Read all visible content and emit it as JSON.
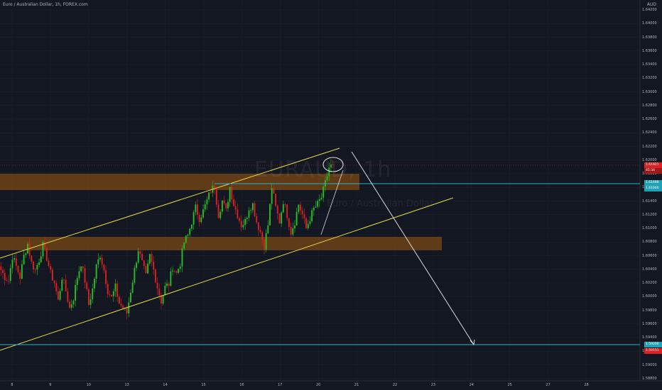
{
  "header": {
    "symbol_title": "Euro / Australian Dollar, 1h, FOREX.com",
    "currency": "AUD"
  },
  "watermark": {
    "symbol": "EURAUD, 1h",
    "description": "Euro / Australian Dollar"
  },
  "colors": {
    "background": "#131722",
    "bull": "#26c026",
    "bear": "#e02020",
    "channel_line": "#e8d84a",
    "zone_fill": "#7a4a14",
    "horizontal_line": "#22b5c8",
    "projection_arrow": "#d8d8d8",
    "current_price_tag": "#e02020",
    "level_tag": "#1fa2b5"
  },
  "price_axis": {
    "labels": [
      "1.64200",
      "1.64000",
      "1.63800",
      "1.63600",
      "1.63400",
      "1.63200",
      "1.63000",
      "1.62800",
      "1.62600",
      "1.62400",
      "1.62200",
      "1.62000",
      "1.61800",
      "1.61600",
      "1.61400",
      "1.61200",
      "1.61000",
      "1.60800",
      "1.60600",
      "1.60400",
      "1.60200",
      "1.60000",
      "1.59800",
      "1.59600",
      "1.59400",
      "1.59200",
      "1.59000",
      "1.58800"
    ]
  },
  "time_axis": {
    "labels": [
      "8",
      "9",
      "10",
      "13",
      "14",
      "15",
      "16",
      "17",
      "20",
      "21",
      "22",
      "23",
      "24",
      "25",
      "27",
      "28"
    ]
  },
  "price_tags": [
    {
      "name": "current-price-tag",
      "text": "1.61921",
      "color": "#e02020"
    },
    {
      "name": "countdown-tag",
      "text": "45:34",
      "color": "#e02020"
    },
    {
      "name": "resistance-level-tag-top",
      "text": "1.61688",
      "color": "#1fa2b5"
    },
    {
      "name": "resistance-level-tag-bottom",
      "text": "1.61660",
      "color": "#1fa2b5"
    },
    {
      "name": "target-level-tag",
      "text": "1.59200",
      "color": "#1fa2b5"
    },
    {
      "name": "target-level-tag-lower",
      "text": "1.59151",
      "color": "#e02020"
    }
  ],
  "chart_data": {
    "type": "candlestick",
    "instrument": "EURAUD",
    "interval": "1h",
    "ylim": [
      1.588,
      1.643
    ],
    "x_ticks": [
      "8",
      "9",
      "10",
      "13",
      "14",
      "15",
      "16",
      "17",
      "20",
      "21",
      "22",
      "23",
      "24",
      "25",
      "27",
      "28"
    ],
    "overlays": {
      "channel_upper": [
        [
          0,
          1.6065
        ],
        [
          478,
          1.6225
        ]
      ],
      "channel_lower": [
        [
          0,
          1.591
        ],
        [
          638,
          1.6145
        ]
      ],
      "supply_zone": {
        "from": 1.617,
        "to": 1.6146
      },
      "demand_zone": {
        "from": 1.6083,
        "to": 1.6066
      },
      "resistance_line": 1.6168,
      "target_line": 1.592,
      "current_price": 1.61921
    },
    "ohlc_path": [
      1.604,
      1.603,
      1.6025,
      1.606,
      1.6045,
      1.603,
      1.606,
      1.6078,
      1.605,
      1.604,
      1.6055,
      1.6075,
      1.6058,
      1.6035,
      1.6022,
      1.5995,
      1.603,
      1.601,
      1.5985,
      1.6,
      1.603,
      1.605,
      1.6025,
      1.599,
      1.6012,
      1.6045,
      1.6062,
      1.604,
      1.601,
      1.6,
      1.6015,
      1.5992,
      1.5985,
      1.5978,
      1.601,
      1.604,
      1.607,
      1.605,
      1.603,
      1.606,
      1.604,
      1.6015,
      1.5995,
      1.6015,
      1.602,
      1.6045,
      1.6035,
      1.605,
      1.608,
      1.609,
      1.611,
      1.613,
      1.6115,
      1.6125,
      1.614,
      1.6155,
      1.616,
      1.612,
      1.614,
      1.6125,
      1.616,
      1.6135,
      1.612,
      1.6105,
      1.611,
      1.613,
      1.6135,
      1.611,
      1.6095,
      1.6075,
      1.6105,
      1.616,
      1.613,
      1.611,
      1.614,
      1.612,
      1.6095,
      1.611,
      1.6135,
      1.612,
      1.61,
      1.6115,
      1.6128,
      1.6135,
      1.6145,
      1.6165,
      1.6188,
      1.6192
    ]
  }
}
